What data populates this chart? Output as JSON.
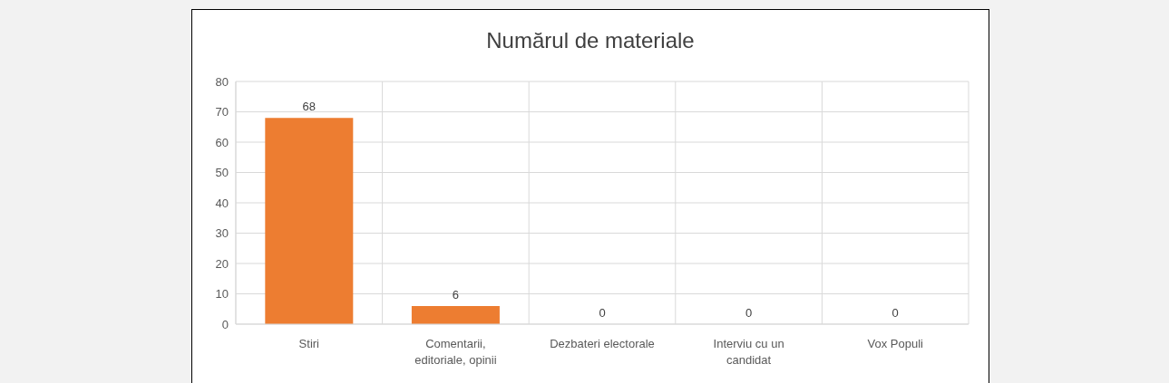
{
  "chart_data": {
    "type": "bar",
    "title": "Numărul de materiale",
    "categories": [
      "Stiri",
      "Comentarii, editoriale, opinii",
      "Dezbateri electorale",
      "Interviu cu un candidat",
      "Vox Populi"
    ],
    "values": [
      68,
      6,
      0,
      0,
      0
    ],
    "color": "#ed7d31",
    "ylim": [
      0,
      80
    ],
    "yticks": [
      0,
      10,
      20,
      30,
      40,
      50,
      60,
      70,
      80
    ],
    "grid": true,
    "data_labels": true
  }
}
